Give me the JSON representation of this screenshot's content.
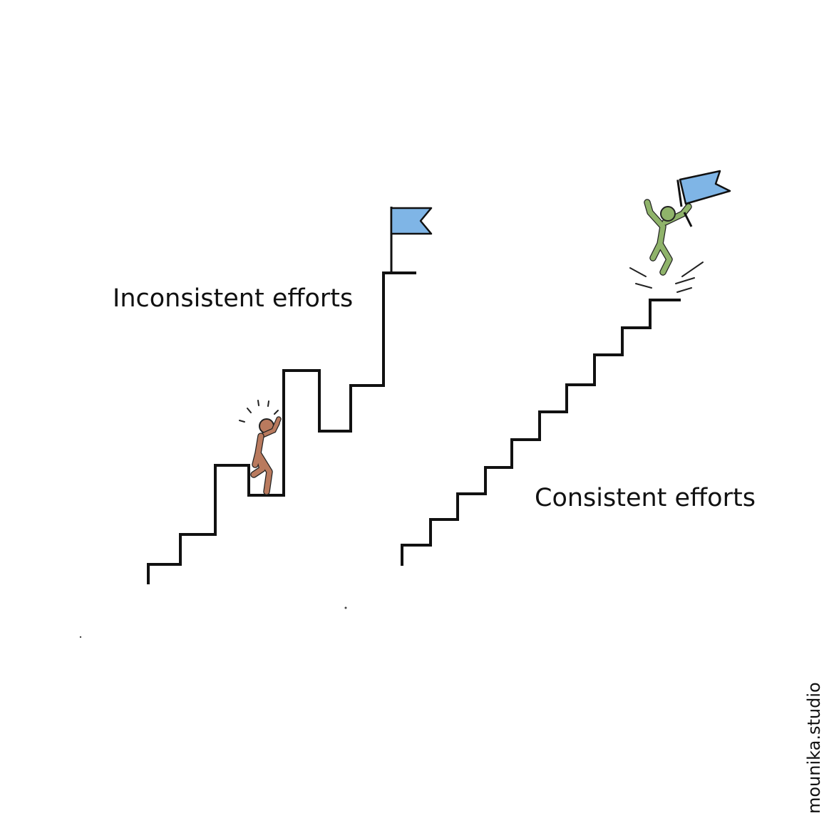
{
  "inconsistent": {
    "label": "Inconsistent efforts"
  },
  "consistent": {
    "label": "Consistent efforts"
  },
  "credit": "mounika.studio",
  "colors": {
    "background": "#ffffff",
    "ink": "#111111",
    "flag": "#7fb5e6",
    "struggling_figure": "#b97a5e",
    "happy_figure": "#8fb36a"
  }
}
